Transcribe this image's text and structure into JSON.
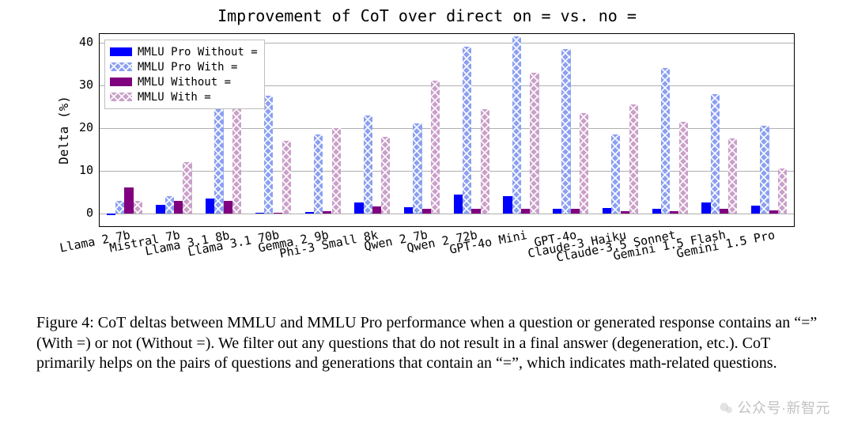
{
  "chart": {
    "type": "grouped-bar",
    "title": "Improvement of CoT over direct on = vs. no =",
    "title_fontsize": 20,
    "font_family": "DejaVu Sans Mono",
    "ylabel": "Delta (%)",
    "label_fontsize": 16,
    "ylim": [
      -3,
      42
    ],
    "yticks": [
      0,
      10,
      20,
      30,
      40
    ],
    "grid_color": "#b0b0b0",
    "background_color": "#ffffff",
    "border_color": "#000000",
    "bar_group_width": 0.72,
    "categories": [
      "Llama 2 7b",
      "Mistral 7b",
      "Llama 3.1 8b",
      "Llama 3.1 70b",
      "Gemma 2 9b",
      "Phi-3 Small 8k",
      "Qwen 2 7b",
      "Qwen 2 72b",
      "GPT-4o Mini",
      "GPT-4o",
      "Claude-3 Haiku",
      "Claude-3.5 Sonnet",
      "Gemini 1.5 Flash",
      "Gemini 1.5 Pro"
    ],
    "xtick_rotation_deg": -11,
    "xtick_fontsize": 15,
    "series": [
      {
        "name": "MMLU Pro Without =",
        "color": "#0000ff",
        "hatched": false,
        "values": [
          -0.5,
          2.0,
          3.5,
          0.2,
          0.3,
          2.5,
          1.5,
          4.5,
          4.0,
          1.0,
          1.3,
          1.0,
          2.5,
          1.8
        ]
      },
      {
        "name": "MMLU Pro With =",
        "color": "#8ba0f0",
        "hatched": true,
        "values": [
          3.0,
          4.0,
          28.0,
          27.5,
          18.5,
          23.0,
          21.0,
          39.0,
          41.5,
          38.5,
          18.5,
          34.0,
          28.0,
          20.5
        ]
      },
      {
        "name": "MMLU Without =",
        "color": "#800080",
        "hatched": false,
        "values": [
          6.0,
          3.0,
          3.0,
          0.2,
          0.5,
          1.7,
          1.0,
          1.0,
          1.0,
          1.0,
          0.5,
          0.5,
          1.0,
          0.7
        ]
      },
      {
        "name": "MMLU With =",
        "color": "#c9a0c9",
        "hatched": true,
        "values": [
          3.0,
          12.0,
          29.0,
          17.0,
          20.0,
          18.0,
          31.0,
          24.5,
          33.0,
          23.5,
          25.5,
          21.5,
          17.5,
          10.5
        ]
      }
    ],
    "hatch_stroke": "#ffffff",
    "legend": {
      "position": "upper-left",
      "fontsize": 14,
      "frame_color": "#bfbfbf",
      "background": "#ffffff"
    }
  },
  "caption": {
    "prefix": "Figure 4:",
    "text": " CoT deltas between MMLU and MMLU Pro performance when a question or generated response contains an “=” (With =) or not (Without =). We filter out any questions that do not result in a final answer (degeneration, etc.). CoT primarily helps on the pairs of questions and generations that contain an “=”, which indicates math-related questions.",
    "font_family": "Times New Roman",
    "fontsize": 20
  },
  "watermark": {
    "text": "公众号·新智元",
    "color": "rgba(120,120,120,0.45)"
  }
}
